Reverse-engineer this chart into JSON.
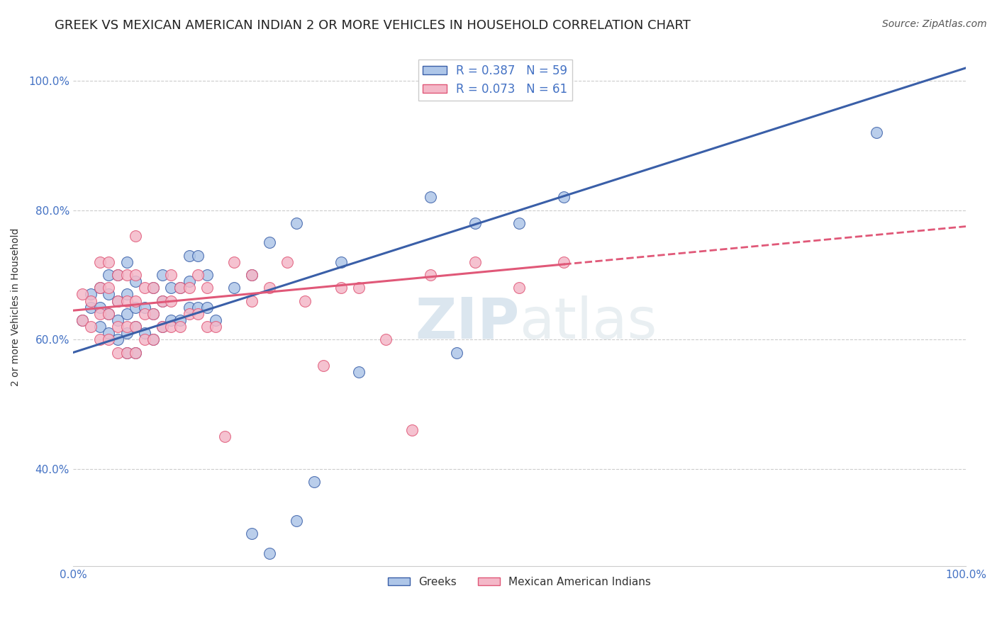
{
  "title": "GREEK VS MEXICAN AMERICAN INDIAN 2 OR MORE VEHICLES IN HOUSEHOLD CORRELATION CHART",
  "source": "Source: ZipAtlas.com",
  "ylabel": "2 or more Vehicles in Household",
  "xmin": 0.0,
  "xmax": 1.0,
  "ymin": 0.25,
  "ymax": 1.05,
  "xtick_labels": [
    "0.0%",
    "100.0%"
  ],
  "ytick_labels": [
    "40.0%",
    "60.0%",
    "80.0%",
    "100.0%"
  ],
  "ytick_positions": [
    0.4,
    0.6,
    0.8,
    1.0
  ],
  "xtick_positions": [
    0.0,
    1.0
  ],
  "r_greek": 0.387,
  "n_greek": 59,
  "r_mexican": 0.073,
  "n_mexican": 61,
  "greek_color": "#aec6e8",
  "mexican_color": "#f4b8c8",
  "greek_line_color": "#3a5fa8",
  "mexican_line_color": "#e05878",
  "greek_points_x": [
    0.01,
    0.02,
    0.02,
    0.03,
    0.03,
    0.03,
    0.04,
    0.04,
    0.04,
    0.04,
    0.05,
    0.05,
    0.05,
    0.05,
    0.06,
    0.06,
    0.06,
    0.06,
    0.06,
    0.07,
    0.07,
    0.07,
    0.07,
    0.08,
    0.08,
    0.09,
    0.09,
    0.09,
    0.1,
    0.1,
    0.1,
    0.11,
    0.11,
    0.12,
    0.12,
    0.13,
    0.13,
    0.13,
    0.14,
    0.14,
    0.15,
    0.15,
    0.16,
    0.18,
    0.2,
    0.22,
    0.25,
    0.3,
    0.32,
    0.4,
    0.43,
    0.45,
    0.5,
    0.55,
    0.2,
    0.22,
    0.25,
    0.9,
    0.27
  ],
  "greek_points_y": [
    0.63,
    0.65,
    0.67,
    0.62,
    0.65,
    0.68,
    0.61,
    0.64,
    0.67,
    0.7,
    0.6,
    0.63,
    0.66,
    0.7,
    0.58,
    0.61,
    0.64,
    0.67,
    0.72,
    0.58,
    0.62,
    0.65,
    0.69,
    0.61,
    0.65,
    0.6,
    0.64,
    0.68,
    0.62,
    0.66,
    0.7,
    0.63,
    0.68,
    0.63,
    0.68,
    0.65,
    0.69,
    0.73,
    0.65,
    0.73,
    0.65,
    0.7,
    0.63,
    0.68,
    0.7,
    0.75,
    0.78,
    0.72,
    0.55,
    0.82,
    0.58,
    0.78,
    0.78,
    0.82,
    0.3,
    0.27,
    0.32,
    0.92,
    0.38
  ],
  "mexican_points_x": [
    0.01,
    0.01,
    0.02,
    0.02,
    0.03,
    0.03,
    0.03,
    0.03,
    0.04,
    0.04,
    0.04,
    0.04,
    0.05,
    0.05,
    0.05,
    0.05,
    0.06,
    0.06,
    0.06,
    0.06,
    0.07,
    0.07,
    0.07,
    0.07,
    0.07,
    0.08,
    0.08,
    0.08,
    0.09,
    0.09,
    0.09,
    0.1,
    0.1,
    0.11,
    0.11,
    0.11,
    0.12,
    0.12,
    0.13,
    0.13,
    0.14,
    0.14,
    0.15,
    0.15,
    0.16,
    0.17,
    0.18,
    0.2,
    0.2,
    0.22,
    0.24,
    0.26,
    0.28,
    0.3,
    0.32,
    0.35,
    0.38,
    0.4,
    0.45,
    0.5,
    0.55
  ],
  "mexican_points_y": [
    0.63,
    0.67,
    0.62,
    0.66,
    0.6,
    0.64,
    0.68,
    0.72,
    0.6,
    0.64,
    0.68,
    0.72,
    0.58,
    0.62,
    0.66,
    0.7,
    0.58,
    0.62,
    0.66,
    0.7,
    0.58,
    0.62,
    0.66,
    0.7,
    0.76,
    0.6,
    0.64,
    0.68,
    0.6,
    0.64,
    0.68,
    0.62,
    0.66,
    0.62,
    0.66,
    0.7,
    0.62,
    0.68,
    0.64,
    0.68,
    0.64,
    0.7,
    0.62,
    0.68,
    0.62,
    0.45,
    0.72,
    0.66,
    0.7,
    0.68,
    0.72,
    0.66,
    0.56,
    0.68,
    0.68,
    0.6,
    0.46,
    0.7,
    0.72,
    0.68,
    0.72
  ],
  "watermark_zip": "ZIP",
  "watermark_atlas": "atlas",
  "legend_labels": [
    "Greeks",
    "Mexican American Indians"
  ],
  "title_fontsize": 13,
  "axis_fontsize": 10,
  "tick_fontsize": 11,
  "source_fontsize": 10,
  "background_color": "#ffffff",
  "grid_color": "#cccccc",
  "tick_color": "#4472c4",
  "legend_r_color": "#4472c4"
}
